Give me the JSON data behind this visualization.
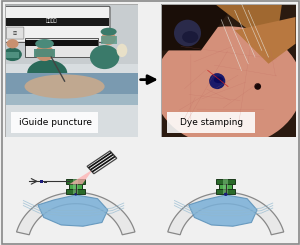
{
  "background_color": "#f0f0f0",
  "border_color": "#aaaaaa",
  "label_iguide": "iGuide puncture",
  "label_dye": "Dye stamping",
  "label_fontsize": 6.5,
  "lung_color": "#7ab0d8",
  "lung_edge_color": "#5a90b8",
  "port_color": "#2a6a2a",
  "port_mid_color": "#4aaa4a",
  "dye_dot_color": "#1a1a7a",
  "chest_fill": "#e8e8e8",
  "chest_edge": "#888888",
  "beam_color": "#ffb0b0",
  "device_body": "#f5f5f5",
  "device_stripe": "#111111",
  "fig_width": 3.0,
  "fig_height": 2.45
}
